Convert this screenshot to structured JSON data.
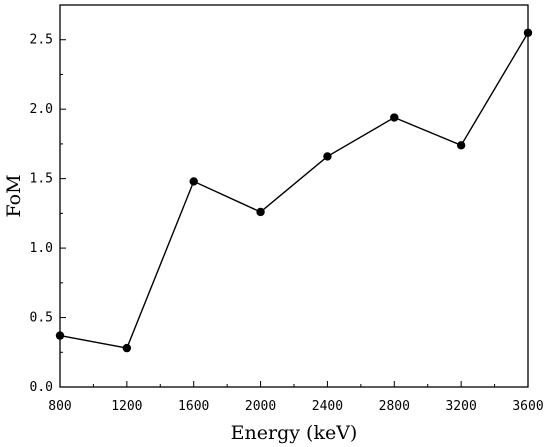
{
  "chart_data": {
    "type": "line",
    "title": "",
    "xlabel": "Energy (keV)",
    "ylabel": "FoM",
    "xlim": [
      800,
      3600
    ],
    "ylim": [
      0,
      2.75
    ],
    "x_ticks": [
      "800",
      "1200",
      "1600",
      "2000",
      "2400",
      "2800",
      "3200",
      "3600"
    ],
    "y_ticks": [
      "0.0",
      "0.5",
      "1.0",
      "1.5",
      "2.0",
      "2.5"
    ],
    "grid": false,
    "legend": "none",
    "series": [
      {
        "x": [
          800,
          1200,
          1600,
          2000,
          2400,
          2800,
          3200,
          3600
        ],
        "y": [
          0.37,
          0.28,
          1.48,
          1.26,
          1.66,
          1.94,
          1.74,
          2.55
        ]
      }
    ],
    "colors": {
      "line": "#000000",
      "marker": "#000000",
      "axis": "#000000"
    }
  }
}
